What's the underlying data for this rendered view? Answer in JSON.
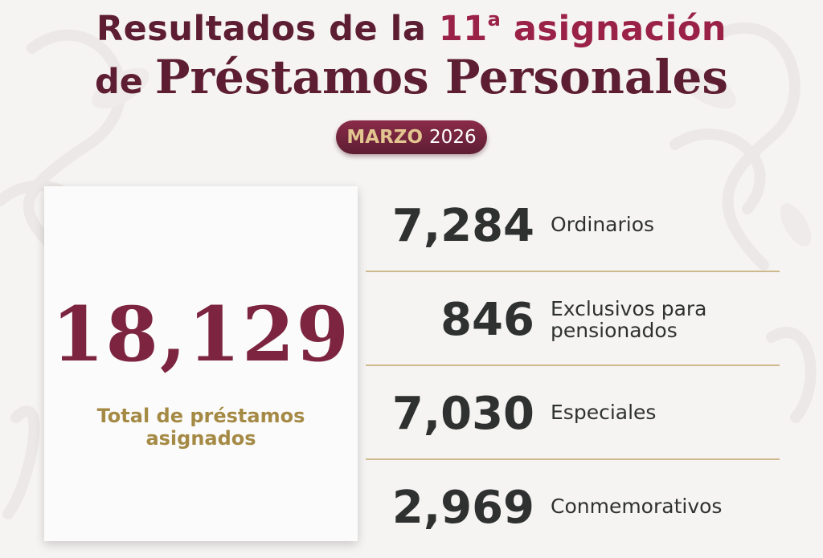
{
  "header": {
    "title_prefix": "Resultados de la ",
    "assignment_number": "11",
    "assignment_suffix": "a",
    "title_suffix": " asignación",
    "title_line2_prefix": "de ",
    "title_line2_main": "Préstamos Personales"
  },
  "date": {
    "month": "MARZO",
    "year": "2026"
  },
  "total": {
    "value": "18,129",
    "label": "Total de préstamos asignados"
  },
  "stats": [
    {
      "value": "7,284",
      "label": "Ordinarios"
    },
    {
      "value": "846",
      "label": "Exclusivos para pensionados"
    },
    {
      "value": "7,030",
      "label": "Especiales"
    },
    {
      "value": "2,969",
      "label": "Conmemorativos"
    }
  ],
  "colors": {
    "brand_dark": "#5d1e33",
    "brand_accent": "#9b2247",
    "gold": "#a58a45",
    "divider": "#cdb98c",
    "text_dark": "#2f3131"
  }
}
